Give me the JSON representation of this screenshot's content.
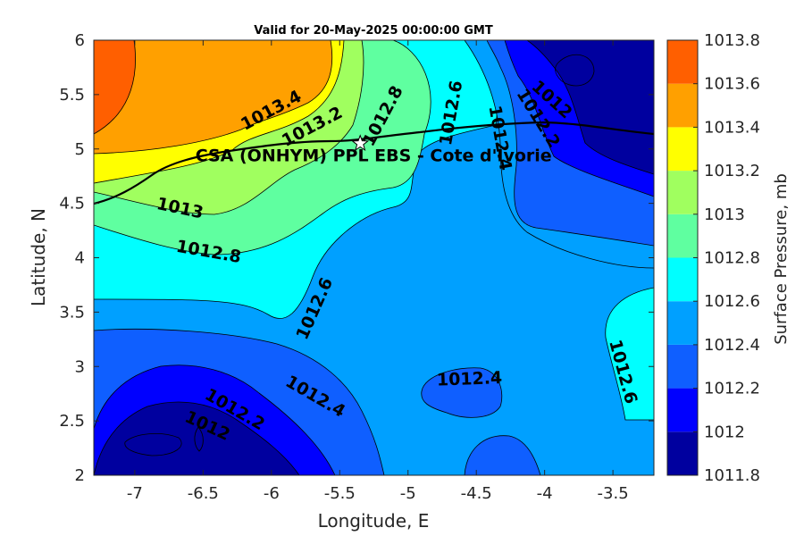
{
  "chart_data": {
    "type": "heatmap",
    "title": "Valid for 20-May-2025 00:00:00 GMT",
    "xlabel": "Longitude, E",
    "ylabel": "Latitude, N",
    "xlim": [
      -7.3,
      -3.2
    ],
    "ylim": [
      2,
      6
    ],
    "x_ticks": [
      -7,
      -6.5,
      -6,
      -5.5,
      -5,
      -4.5,
      -4,
      -3.5
    ],
    "x_tick_labels": [
      "-7",
      "-6.5",
      "-6",
      "-5.5",
      "-5",
      "-4.5",
      "-4",
      "-3.5"
    ],
    "y_ticks": [
      2,
      2.5,
      3,
      3.5,
      4,
      4.5,
      5,
      5.5,
      6
    ],
    "y_tick_labels": [
      "2",
      "2.5",
      "3",
      "3.5",
      "4",
      "4.5",
      "5",
      "5.5",
      "6"
    ],
    "colorbar": {
      "label": "Surface Pressure, mb",
      "levels": [
        1011.8,
        1012,
        1012.2,
        1012.4,
        1012.6,
        1012.8,
        1013,
        1013.2,
        1013.4,
        1013.6,
        1013.8
      ],
      "tick_labels": [
        "1011.8",
        "1012",
        "1012.2",
        "1012.4",
        "1012.6",
        "1012.8",
        "1013",
        "1013.2",
        "1013.4",
        "1013.6",
        "1013.8"
      ],
      "colors": [
        "#00009f",
        "#0000ff",
        "#0f5fff",
        "#00a0ff",
        "#00ffff",
        "#5fffa0",
        "#a0ff5f",
        "#ffff00",
        "#ffa000",
        "#ff5f00",
        "#ff0000"
      ]
    },
    "contour_labels": [
      {
        "text": "1013.4",
        "x": -6.0,
        "y": 5.35,
        "rot": -28
      },
      {
        "text": "1013.2",
        "x": -5.7,
        "y": 5.2,
        "rot": -28
      },
      {
        "text": "1012.8",
        "x": -5.18,
        "y": 5.3,
        "rot": -62
      },
      {
        "text": "1012.6",
        "x": -4.68,
        "y": 5.33,
        "rot": -80
      },
      {
        "text": "1012",
        "x": -3.95,
        "y": 5.45,
        "rot": 42
      },
      {
        "text": "1012.2",
        "x": -4.05,
        "y": 5.28,
        "rot": 58
      },
      {
        "text": "1012.4",
        "x": -4.33,
        "y": 5.1,
        "rot": 80
      },
      {
        "text": "1013",
        "x": -6.67,
        "y": 4.45,
        "rot": 12
      },
      {
        "text": "1012.8",
        "x": -6.46,
        "y": 4.05,
        "rot": 10
      },
      {
        "text": "1012.6",
        "x": -5.68,
        "y": 3.53,
        "rot": -66
      },
      {
        "text": "1012.4",
        "x": -4.55,
        "y": 2.88,
        "rot": -2
      },
      {
        "text": "1012.6",
        "x": -3.43,
        "y": 2.95,
        "rot": 75
      },
      {
        "text": "1012.2",
        "x": -6.27,
        "y": 2.6,
        "rot": 30
      },
      {
        "text": "1012.4",
        "x": -5.68,
        "y": 2.72,
        "rot": 30
      },
      {
        "text": "1012",
        "x": -6.47,
        "y": 2.45,
        "rot": 25
      }
    ],
    "site": {
      "label": "CSA (ONHYM) PPL EBS  - Cote d'Ivorie",
      "lon": -5.35,
      "lat": 5.05
    }
  }
}
